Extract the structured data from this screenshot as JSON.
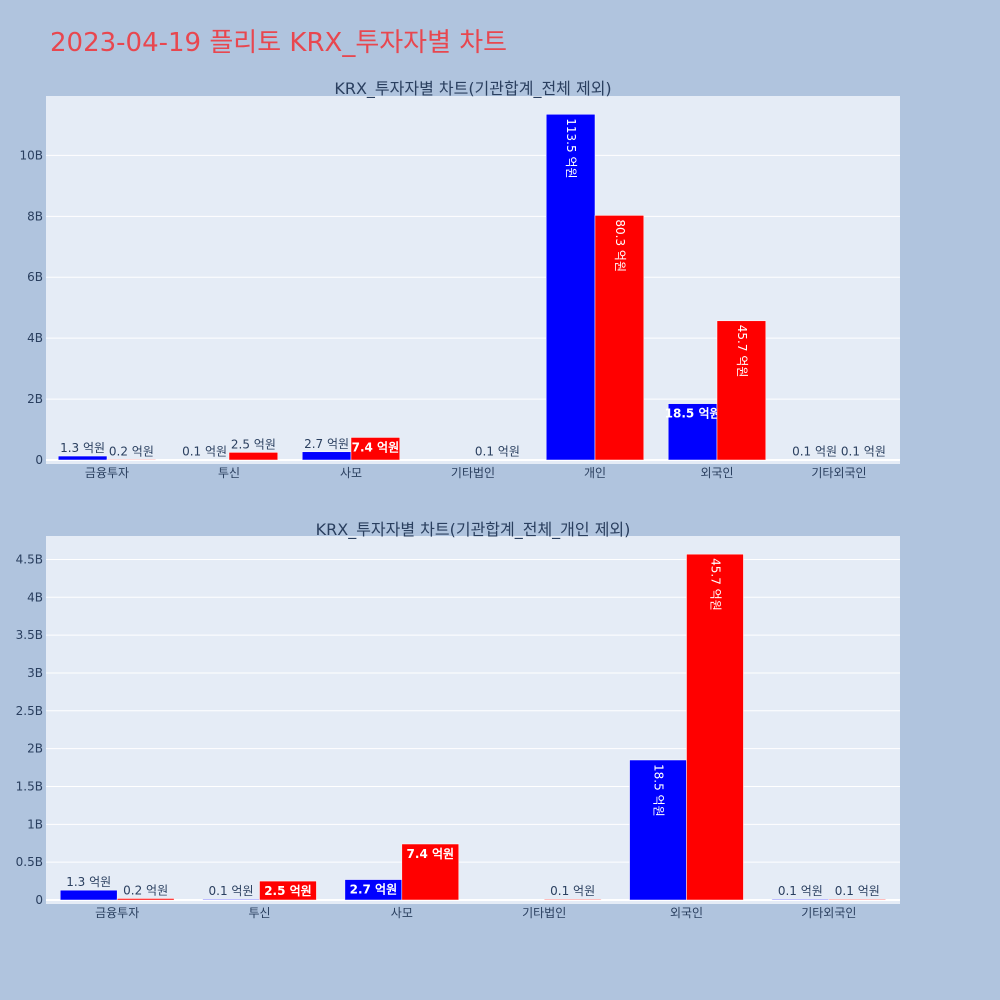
{
  "page": {
    "title": "2023-04-19 플리토 KRX_투자자별 차트"
  },
  "colors": {
    "buy": "#0000ff",
    "sell": "#ff0000",
    "plot_bg": "#e5ecf6",
    "paper_bg": "#b0c4de",
    "title": "#e8474f"
  },
  "chart_data": [
    {
      "type": "bar",
      "title": "KRX_투자자별 차트(기관합계_전체 제외)",
      "categories": [
        "금융투자",
        "투신",
        "사모",
        "기타법인",
        "개인",
        "외국인",
        "기타외국인"
      ],
      "series": [
        {
          "values": [
            130000000,
            10000000,
            270000000,
            0,
            11350000000,
            1850000000,
            10000000
          ],
          "labels": [
            "1.3 억원",
            "0.1 억원",
            "2.7 억원",
            "",
            "113.5 억원",
            "18.5 억원",
            "0.1 억원"
          ]
        },
        {
          "values": [
            20000000,
            250000000,
            740000000,
            10000000,
            8030000000,
            4570000000,
            10000000
          ],
          "labels": [
            "0.2 억원",
            "2.5 억원",
            "7.4 억원",
            "0.1 억원",
            "80.3 억원",
            "45.7 억원",
            "0.1 억원"
          ]
        }
      ],
      "yticks": [
        0,
        2000000000,
        4000000000,
        6000000000,
        8000000000,
        10000000000
      ],
      "ytick_labels": [
        "0",
        "2B",
        "4B",
        "6B",
        "8B",
        "10B"
      ],
      "ylim": [
        0,
        11950000000
      ],
      "grid": true
    },
    {
      "type": "bar",
      "title": "KRX_투자자별 차트(기관합계_전체_개인 제외)",
      "categories": [
        "금융투자",
        "투신",
        "사모",
        "기타법인",
        "외국인",
        "기타외국인"
      ],
      "series": [
        {
          "values": [
            130000000,
            10000000,
            270000000,
            0,
            1850000000,
            10000000
          ],
          "labels": [
            "1.3 억원",
            "0.1 억원",
            "2.7 억원",
            "",
            "18.5 억원",
            "0.1 억원"
          ]
        },
        {
          "values": [
            20000000,
            250000000,
            740000000,
            10000000,
            4570000000,
            10000000
          ],
          "labels": [
            "0.2 억원",
            "2.5 억원",
            "7.4 억원",
            "0.1 억원",
            "45.7 억원",
            "0.1 억원"
          ]
        }
      ],
      "yticks": [
        0,
        500000000,
        1000000000,
        1500000000,
        2000000000,
        2500000000,
        3000000000,
        3500000000,
        4000000000,
        4500000000
      ],
      "ytick_labels": [
        "0",
        "0.5B",
        "1B",
        "1.5B",
        "2B",
        "2.5B",
        "3B",
        "3.5B",
        "4B",
        "4.5B"
      ],
      "ylim": [
        0,
        4810000000
      ],
      "grid": true
    }
  ]
}
